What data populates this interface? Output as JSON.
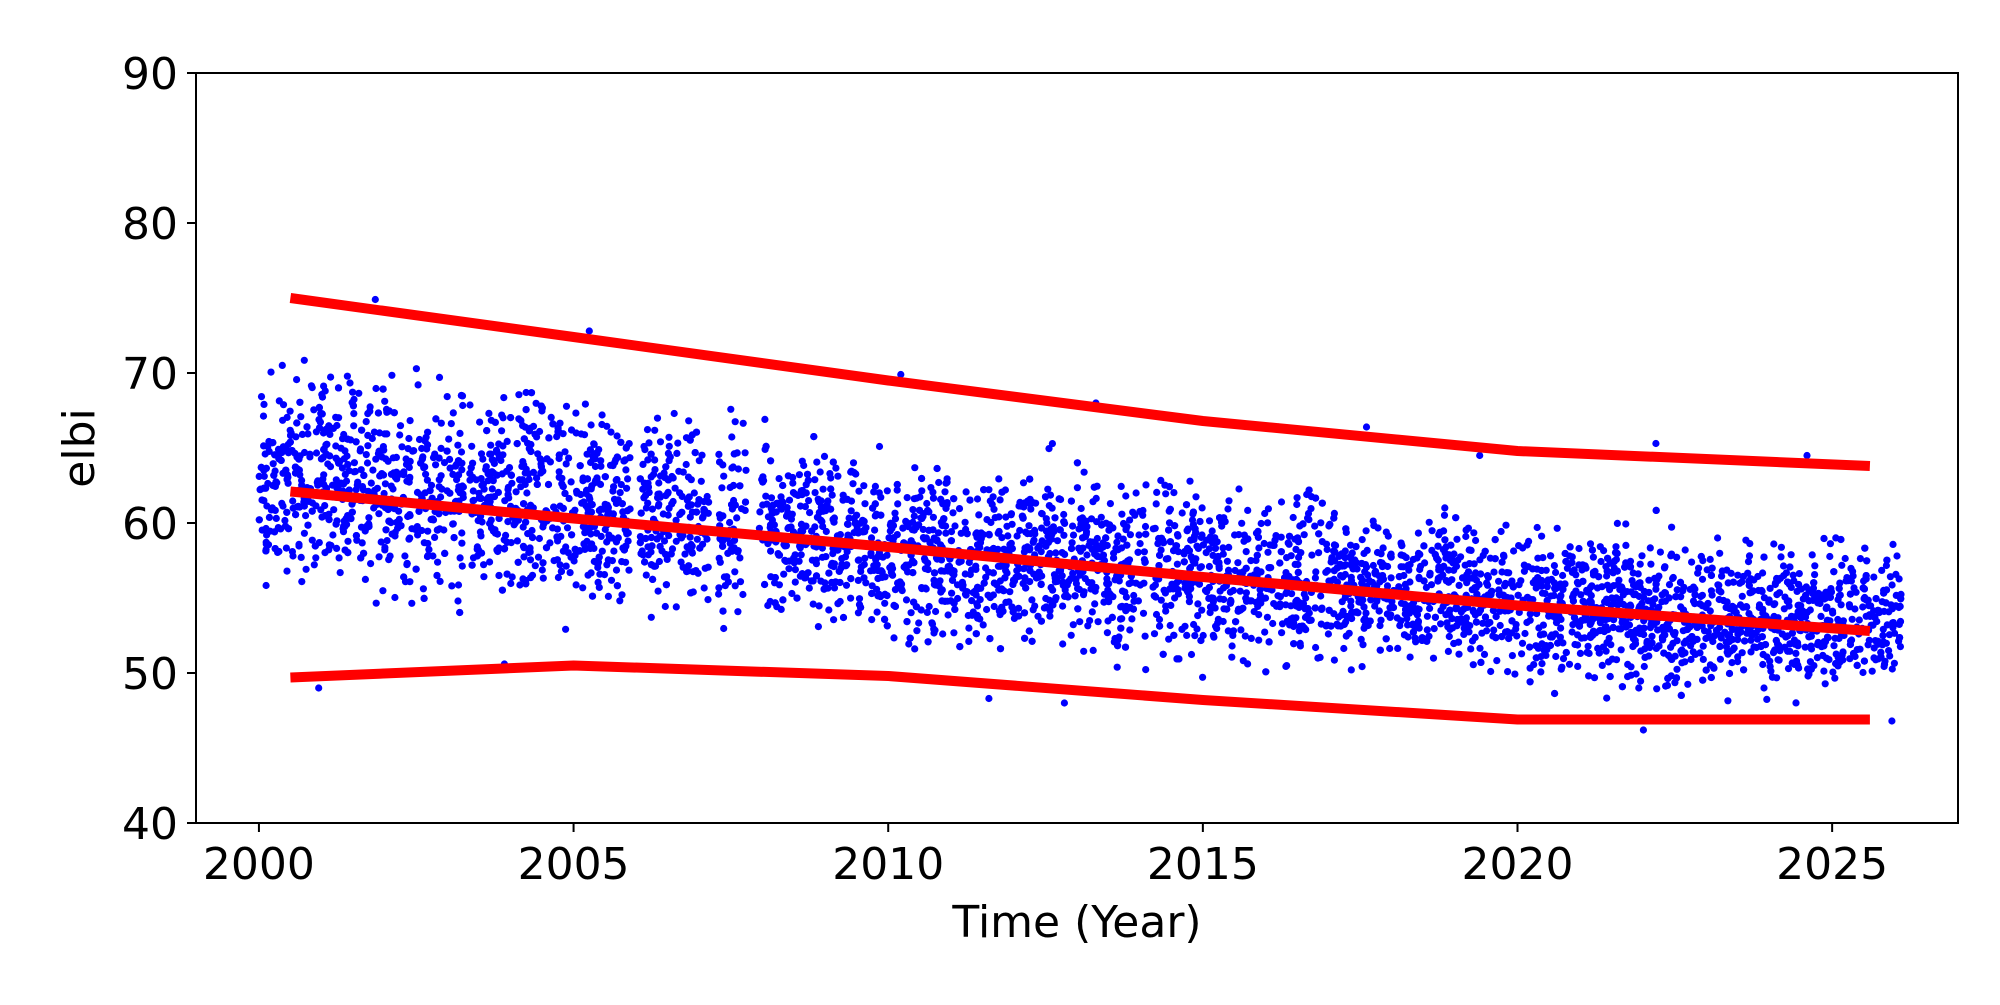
{
  "chart_data": {
    "type": "scatter",
    "title": "",
    "xlabel": "Time (Year)",
    "ylabel": "elbi",
    "xlim": [
      1999.0,
      2027.0
    ],
    "ylim": [
      40,
      90
    ],
    "xticks": [
      2000,
      2005,
      2010,
      2015,
      2020,
      2025
    ],
    "yticks": [
      40,
      50,
      60,
      70,
      80,
      90
    ],
    "grid": false,
    "legend": "none",
    "colors": {
      "points": "#0000ff",
      "fit_lines": "#ff0000",
      "axes": "#000000"
    },
    "scatter": {
      "x_range": [
        2000.0,
        2026.1
      ],
      "gaps": [
        [
          2003.25,
          2003.35
        ],
        [
          2005.9,
          2006.05
        ],
        [
          2007.15,
          2007.3
        ],
        [
          2007.75,
          2007.95
        ],
        [
          2009.65,
          2009.72
        ],
        [
          2014.1,
          2014.2
        ]
      ],
      "envelope": {
        "x": [
          2000.0,
          2001.0,
          2002.0,
          2003.0,
          2004.0,
          2005.0,
          2006.0,
          2007.0,
          2008.0,
          2009.0,
          2010.0,
          2011.0,
          2012.0,
          2013.0,
          2014.0,
          2015.0,
          2016.0,
          2017.0,
          2018.0,
          2019.0,
          2020.0,
          2021.0,
          2022.0,
          2023.0,
          2024.0,
          2025.0,
          2026.1
        ],
        "low": [
          53.0,
          53.0,
          53.0,
          52.5,
          52.5,
          52.5,
          52.5,
          52.0,
          52.0,
          51.5,
          50.5,
          50.0,
          50.0,
          50.0,
          49.5,
          49.5,
          49.5,
          49.0,
          49.0,
          48.5,
          48.0,
          47.5,
          47.5,
          47.5,
          47.5,
          47.5,
          47.5
        ],
        "high": [
          73.0,
          72.0,
          72.0,
          71.0,
          71.0,
          70.0,
          69.5,
          68.5,
          68.0,
          67.0,
          66.0,
          65.5,
          65.5,
          65.0,
          64.5,
          64.0,
          63.5,
          63.0,
          62.0,
          61.5,
          61.0,
          61.0,
          61.0,
          60.5,
          60.0,
          60.0,
          60.0
        ]
      },
      "outliers": [
        [
          2001.85,
          74.9
        ],
        [
          2005.25,
          72.8
        ],
        [
          2010.2,
          69.9
        ],
        [
          2013.3,
          68.0
        ],
        [
          2016.2,
          66.4
        ],
        [
          2017.6,
          66.4
        ],
        [
          2019.4,
          64.5
        ],
        [
          2022.2,
          65.3
        ],
        [
          2024.6,
          64.5
        ],
        [
          2000.95,
          49.0
        ],
        [
          2012.8,
          48.0
        ],
        [
          2022.0,
          46.2
        ],
        [
          2025.95,
          46.8
        ],
        [
          2011.6,
          48.3
        ],
        [
          2003.9,
          50.6
        ]
      ]
    },
    "series": [
      {
        "x": [
          2000.5,
          2005,
          2010,
          2015,
          2020,
          2025.6
        ],
        "y": [
          75.0,
          72.4,
          69.5,
          66.8,
          64.8,
          63.8
        ]
      },
      {
        "x": [
          2000.5,
          2005,
          2010,
          2015,
          2020,
          2025.6
        ],
        "y": [
          62.1,
          60.3,
          58.4,
          56.4,
          54.5,
          52.8
        ]
      },
      {
        "x": [
          2000.5,
          2005,
          2010,
          2015,
          2020,
          2025.6
        ],
        "y": [
          49.7,
          50.5,
          49.8,
          48.2,
          46.9,
          46.9
        ]
      }
    ]
  }
}
